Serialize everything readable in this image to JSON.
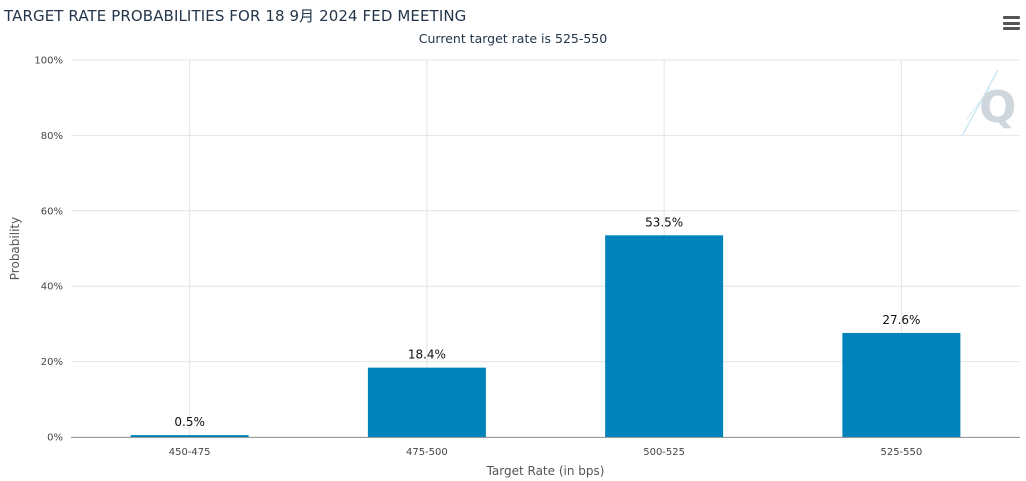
{
  "header": {
    "title": "TARGET RATE PROBABILITIES FOR 18 9月 2024 FED MEETING",
    "subtitle": "Current target rate is 525-550"
  },
  "chart_data": {
    "type": "bar",
    "categories": [
      "450-475",
      "475-500",
      "500-525",
      "525-550"
    ],
    "values": [
      0.5,
      18.4,
      53.5,
      27.6
    ],
    "data_labels": [
      "0.5%",
      "18.4%",
      "53.5%",
      "27.6%"
    ],
    "xlabel": "Target Rate (in bps)",
    "ylabel": "Probability",
    "ylim": [
      0,
      100
    ],
    "yticks": [
      "0%",
      "20%",
      "40%",
      "60%",
      "80%",
      "100%"
    ],
    "grid": true,
    "bar_color": "#0083ba"
  },
  "icons": {
    "menu": "hamburger-menu-icon",
    "logo": "q-logo-icon"
  }
}
